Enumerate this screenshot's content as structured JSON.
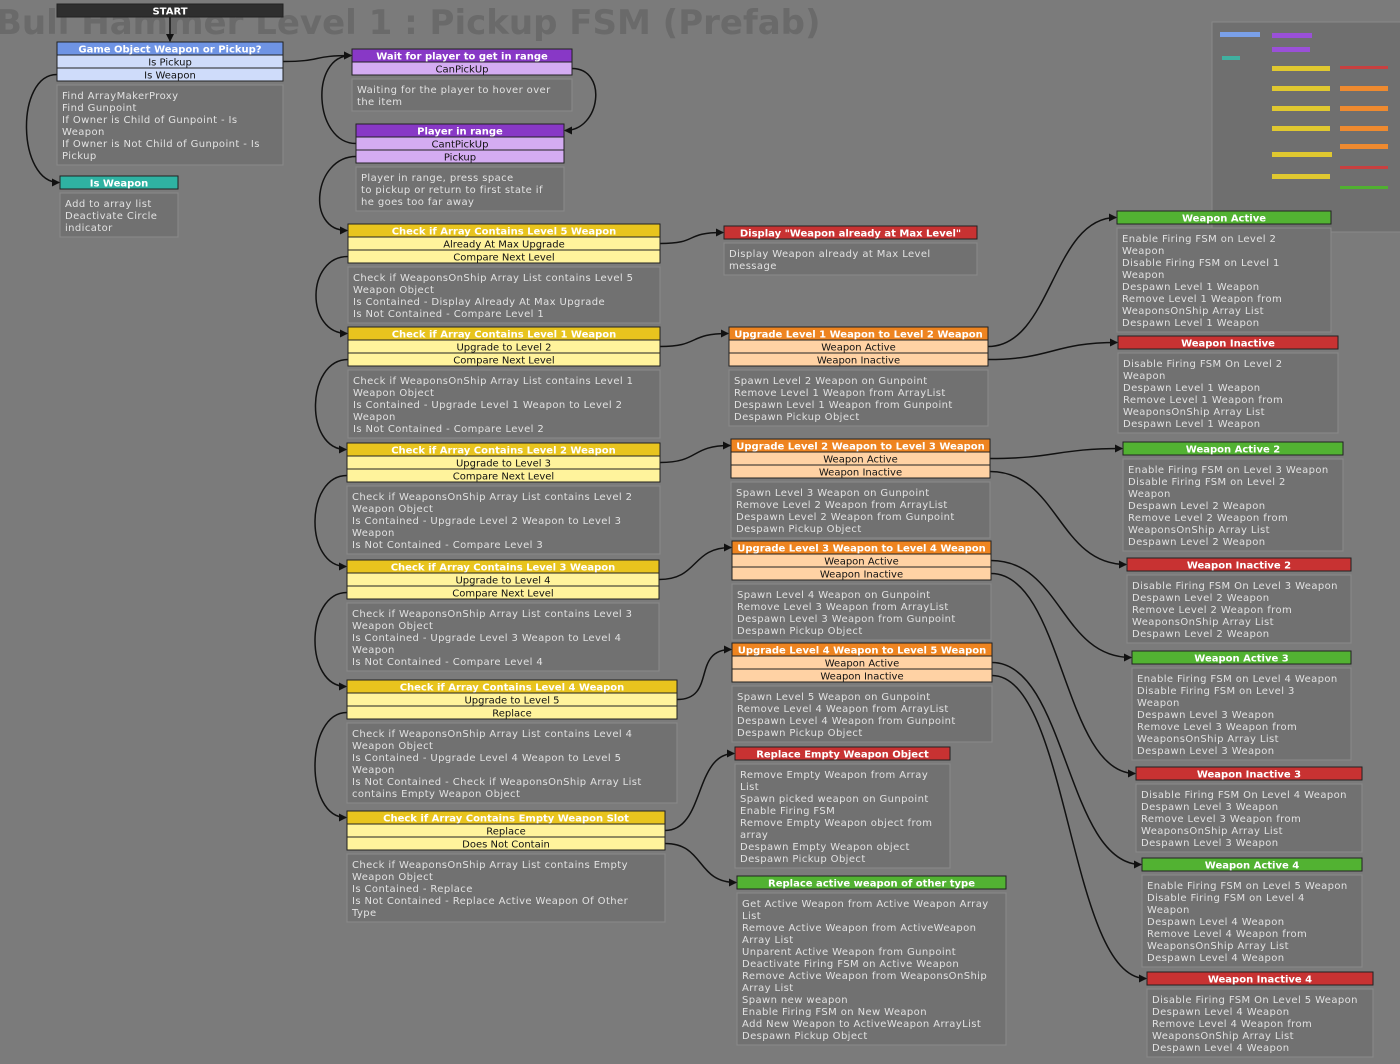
{
  "title": "Bull Hammer Level 1 : Pickup FSM (Prefab)",
  "nodes": [
    {
      "title": "START",
      "events": [],
      "description": []
    },
    {
      "title": "Game Object Weapon or Pickup?",
      "events": [
        "Is Pickup",
        "Is Weapon"
      ],
      "description": [
        "Find ArrayMakerProxy",
        "Find Gunpoint",
        "If Owner is Child of Gunpoint - Is",
        "Weapon",
        "If Owner is Not Child of Gunpoint - Is",
        "Pickup"
      ]
    },
    {
      "title": "Is Weapon",
      "events": [],
      "description": [
        "Add to array list",
        "Deactivate Circle",
        "indicator"
      ]
    },
    {
      "title": "Wait for player to get in range",
      "events": [
        "CanPickUp"
      ],
      "description": [
        "Waiting for the player to hover over",
        "the item"
      ]
    },
    {
      "title": "Player in range",
      "events": [
        "CantPickUp",
        "Pickup"
      ],
      "description": [
        "Player in range, press space",
        "to pickup or return to first state if",
        "he goes too far away"
      ]
    },
    {
      "title": "Check if Array Contains Level 5 Weapon",
      "events": [
        "Already At Max Upgrade",
        "Compare Next Level"
      ],
      "description": [
        "Check if WeaponsOnShip Array List contains Level 5",
        "Weapon Object",
        "Is Contained - Display Already At Max Upgrade",
        "Is Not Contained - Compare Level 1"
      ]
    },
    {
      "title": "Check if Array Contains Level 1 Weapon",
      "events": [
        "Upgrade to Level 2",
        "Compare Next Level"
      ],
      "description": [
        "Check if WeaponsOnShip Array List contains Level 1",
        "Weapon Object",
        "Is Contained - Upgrade Level 1 Weapon to Level 2",
        "Weapon",
        "Is Not Contained - Compare Level 2"
      ]
    },
    {
      "title": "Check if Array Contains Level 2 Weapon",
      "events": [
        "Upgrade to Level 3",
        "Compare Next Level"
      ],
      "description": [
        "Check if WeaponsOnShip Array List contains Level 2",
        "Weapon Object",
        "Is Contained - Upgrade Level 2 Weapon to Level 3",
        "Weapon",
        "Is Not Contained - Compare Level 3"
      ]
    },
    {
      "title": "Check if Array Contains Level 3 Weapon",
      "events": [
        "Upgrade to Level 4",
        "Compare Next Level"
      ],
      "description": [
        "Check if WeaponsOnShip Array List contains Level 3",
        "Weapon Object",
        "Is Contained - Upgrade Level 3 Weapon to Level 4",
        "Weapon",
        "Is Not Contained - Compare Level 4"
      ]
    },
    {
      "title": "Check if Array Contains Level 4 Weapon",
      "events": [
        "Upgrade to Level 5",
        "Replace"
      ],
      "description": [
        "Check if WeaponsOnShip Array List contains Level 4",
        "Weapon Object",
        "Is Contained - Upgrade Level 4 Weapon to Level 5",
        "Weapon",
        "Is Not Contained - Check if WeaponsOnShip Array List",
        "contains Empty Weapon Object"
      ]
    },
    {
      "title": "Check if Array Contains Empty Weapon Slot",
      "events": [
        "Replace",
        "Does Not Contain"
      ],
      "description": [
        "Check if WeaponsOnShip Array List contains Empty",
        "Weapon Object",
        "Is Contained - Replace",
        "Is Not Contained - Replace Active Weapon Of Other",
        "Type"
      ]
    },
    {
      "title": "Display \"Weapon already at Max Level\"",
      "events": [],
      "description": [
        "Display Weapon already at Max Level",
        "message"
      ]
    },
    {
      "title": "Upgrade Level 1 Weapon to Level 2 Weapon",
      "events": [
        "Weapon Active",
        "Weapon Inactive"
      ],
      "description": [
        "Spawn Level 2 Weapon on Gunpoint",
        "Remove Level 1 Weapon from ArrayList",
        "Despawn Level 1 Weapon from Gunpoint",
        "Despawn Pickup Object"
      ]
    },
    {
      "title": "Upgrade Level 2 Weapon to Level 3 Weapon",
      "events": [
        "Weapon Active",
        "Weapon Inactive"
      ],
      "description": [
        "Spawn Level 3 Weapon on Gunpoint",
        "Remove Level 2 Weapon from ArrayList",
        "Despawn Level 2 Weapon from Gunpoint",
        "Despawn Pickup Object"
      ]
    },
    {
      "title": "Upgrade Level 3 Weapon to Level 4 Weapon",
      "events": [
        "Weapon Active",
        "Weapon Inactive"
      ],
      "description": [
        "Spawn Level 4 Weapon on Gunpoint",
        "Remove Level 3 Weapon from ArrayList",
        "Despawn Level 3 Weapon from Gunpoint",
        "Despawn Pickup Object"
      ]
    },
    {
      "title": "Upgrade Level 4 Weapon to Level 5 Weapon",
      "events": [
        "Weapon Active",
        "Weapon Inactive"
      ],
      "description": [
        "Spawn Level 5 Weapon on Gunpoint",
        "Remove Level 4 Weapon from ArrayList",
        "Despawn Level 4 Weapon from Gunpoint",
        "Despawn Pickup Object"
      ]
    },
    {
      "title": "Replace Empty Weapon Object",
      "events": [],
      "description": [
        "Remove Empty Weapon from Array",
        "List",
        "Spawn picked weapon on Gunpoint",
        "Enable Firing FSM",
        "Remove Empty Weapon object from",
        "array",
        "Despawn Empty Weapon object",
        "Despawn Pickup Object"
      ]
    },
    {
      "title": "Replace active weapon of other type",
      "events": [],
      "description": [
        "Get Active Weapon from Active Weapon Array",
        "List",
        "Remove Active Weapon from ActiveWeapon",
        "Array List",
        "Unparent Active Weapon from Gunpoint",
        "Deactivate Firing FSM on Active Weapon",
        "Remove Active Weapon from WeaponsOnShip",
        "Array List",
        "Spawn new weapon",
        "Enable Firing FSM on New Weapon",
        "Add New Weapon to ActiveWeapon ArrayList",
        "Despawn Pickup Object"
      ]
    },
    {
      "title": "Weapon Active",
      "events": [],
      "description": [
        "Enable Firing FSM on Level 2",
        "Weapon",
        "Disable Firing FSM on Level 1",
        "Weapon",
        "Despawn Level 1 Weapon",
        "Remove Level 1 Weapon from",
        "WeaponsOnShip Array List",
        "Despawn Level 1 Weapon"
      ]
    },
    {
      "title": "Weapon Inactive",
      "events": [],
      "description": [
        "Disable Firing FSM On Level 2",
        "Weapon",
        "Despawn Level 1 Weapon",
        "Remove Level 1 Weapon from",
        "WeaponsOnShip Array List",
        "Despawn Level 1 Weapon"
      ]
    },
    {
      "title": "Weapon Active 2",
      "events": [],
      "description": [
        "Enable Firing FSM on Level 3 Weapon",
        "Disable Firing FSM on Level 2",
        "Weapon",
        "Despawn Level 2 Weapon",
        "Remove Level 2 Weapon from",
        "WeaponsOnShip Array List",
        "Despawn Level 2 Weapon"
      ]
    },
    {
      "title": "Weapon Inactive 2",
      "events": [],
      "description": [
        "Disable Firing FSM On Level 3 Weapon",
        "Despawn Level 2 Weapon",
        "Remove Level 2 Weapon from",
        "WeaponsOnShip Array List",
        "Despawn Level 2 Weapon"
      ]
    },
    {
      "title": "Weapon Active 3",
      "events": [],
      "description": [
        "Enable Firing FSM on Level 4 Weapon",
        "Disable Firing FSM on Level 3",
        "Weapon",
        "Despawn Level 3 Weapon",
        "Remove Level 3 Weapon from",
        "WeaponsOnShip Array List",
        "Despawn Level 3 Weapon"
      ]
    },
    {
      "title": "Weapon Inactive 3",
      "events": [],
      "description": [
        "Disable Firing FSM On Level 4 Weapon",
        "Despawn Level 3 Weapon",
        "Remove Level 3 Weapon from",
        "WeaponsOnShip Array List",
        "Despawn Level 3 Weapon"
      ]
    },
    {
      "title": "Weapon Active 4",
      "events": [],
      "description": [
        "Enable Firing FSM on Level 5 Weapon",
        "Disable Firing FSM on Level 4",
        "Weapon",
        "Despawn Level 4 Weapon",
        "Remove Level 4 Weapon from",
        "WeaponsOnShip Array List",
        "Despawn Level 4 Weapon"
      ]
    },
    {
      "title": "Weapon Inactive 4",
      "events": [],
      "description": [
        "Disable Firing FSM On Level 5 Weapon",
        "Despawn Level 4 Weapon",
        "Remove Level 4 Weapon from",
        "WeaponsOnShip Array List",
        "Despawn Level 4 Weapon"
      ]
    }
  ]
}
